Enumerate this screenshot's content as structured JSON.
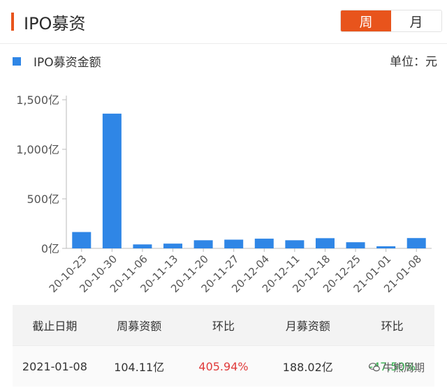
{
  "header": {
    "title": "IPO募资",
    "toggle": [
      {
        "label": "周",
        "active": true
      },
      {
        "label": "月",
        "active": false
      }
    ],
    "accent_color": "#e8541c"
  },
  "legend": {
    "label": "IPO募资金额",
    "color": "#2f86e6"
  },
  "unit_label": "单位：元",
  "chart_data": {
    "type": "bar",
    "title": "",
    "xlabel": "",
    "ylabel": "",
    "categories": [
      "20-10-23",
      "20-10-30",
      "20-11-06",
      "20-11-13",
      "20-11-20",
      "20-11-27",
      "20-12-04",
      "20-12-11",
      "20-12-18",
      "20-12-25",
      "21-01-01",
      "21-01-08"
    ],
    "series": [
      {
        "name": "IPO募资金额",
        "values": [
          165,
          1360,
          40,
          48,
          82,
          88,
          98,
          82,
          103,
          62,
          21,
          104.11
        ]
      }
    ],
    "yticks": [
      0,
      500,
      1000,
      1500
    ],
    "ytick_labels": [
      "0亿",
      "500亿",
      "1,000亿",
      "1,500亿"
    ],
    "ylim": [
      0,
      1500
    ],
    "grid": false,
    "bar_color": "#2f86e6"
  },
  "table": {
    "headers": [
      "截止日期",
      "周募资额",
      "环比",
      "月募资额",
      "环比"
    ],
    "row": {
      "date": "2021-01-08",
      "weekly": "104.11亿",
      "weekly_change": "405.94%",
      "monthly": "188.02亿",
      "monthly_change": "-47.50%"
    },
    "positive_color": "#e03b3b",
    "negative_color": "#2fb24a"
  },
  "watermark": {
    "text": "牛熊周期",
    "icon": "wechat-icon"
  }
}
